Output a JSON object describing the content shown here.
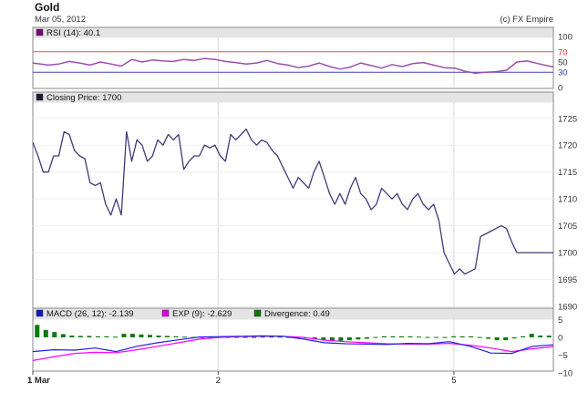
{
  "header": {
    "title": "Gold",
    "date": "Mar 05, 2012",
    "copyright": "(c) FX Empire"
  },
  "colors": {
    "price_line": "#3c3c7a",
    "rsi_line": "#9b4fb0",
    "rsi_upper": "#e05050",
    "rsi_lower": "#4040c0",
    "macd_line": "#2020e0",
    "exp_line": "#ff00ff",
    "divergence_bar": "#0a7a0a",
    "panel_header_bg": "#e4e4e4",
    "grid": "#d8d8d8"
  },
  "chart_data": [
    {
      "type": "line",
      "panel": "rsi",
      "label": "RSI (14): 40.1",
      "legend_swatch": "#800080",
      "ylim": [
        0,
        100
      ],
      "yticks": [
        100,
        70,
        50,
        30,
        0
      ],
      "reference_lines": [
        70,
        30
      ],
      "x": [
        0,
        0.03,
        0.05,
        0.07,
        0.09,
        0.11,
        0.13,
        0.15,
        0.17,
        0.19,
        0.21,
        0.23,
        0.25,
        0.27,
        0.29,
        0.31,
        0.33,
        0.35,
        0.37,
        0.39,
        0.41,
        0.43,
        0.45,
        0.47,
        0.49,
        0.51,
        0.53,
        0.55,
        0.57,
        0.59,
        0.61,
        0.63,
        0.65,
        0.67,
        0.69,
        0.71,
        0.73,
        0.75,
        0.77,
        0.79,
        0.81,
        0.83,
        0.85,
        0.87,
        0.89,
        0.91,
        0.93,
        0.95,
        0.97,
        1.0
      ],
      "values": [
        48,
        44,
        46,
        51,
        48,
        44,
        50,
        46,
        42,
        55,
        50,
        54,
        52,
        51,
        55,
        53,
        57,
        55,
        51,
        49,
        46,
        48,
        53,
        47,
        44,
        39,
        42,
        48,
        41,
        36,
        40,
        48,
        43,
        38,
        45,
        41,
        47,
        49,
        44,
        39,
        38,
        32,
        28,
        30,
        31,
        34,
        50,
        52,
        47,
        40.1
      ],
      "ylabel": ""
    },
    {
      "type": "line",
      "panel": "price",
      "label": "Closing Price: 1700",
      "legend_swatch": "#1a1a3a",
      "ylim": [
        1690,
        1727
      ],
      "yticks": [
        1725,
        1720,
        1715,
        1710,
        1705,
        1700,
        1695,
        1690
      ],
      "xticks": [
        {
          "label": "1 Mar",
          "pos": 0.0,
          "bold": true
        },
        {
          "label": "2",
          "pos": 0.356,
          "bold": false
        },
        {
          "label": "5",
          "pos": 0.809,
          "bold": false
        }
      ],
      "x": [
        0,
        0.01,
        0.02,
        0.03,
        0.04,
        0.05,
        0.06,
        0.07,
        0.08,
        0.09,
        0.1,
        0.11,
        0.12,
        0.13,
        0.14,
        0.15,
        0.16,
        0.17,
        0.18,
        0.19,
        0.2,
        0.21,
        0.22,
        0.23,
        0.24,
        0.25,
        0.26,
        0.27,
        0.28,
        0.29,
        0.3,
        0.31,
        0.32,
        0.33,
        0.34,
        0.35,
        0.36,
        0.37,
        0.38,
        0.39,
        0.4,
        0.41,
        0.42,
        0.43,
        0.44,
        0.45,
        0.46,
        0.47,
        0.48,
        0.49,
        0.5,
        0.51,
        0.52,
        0.53,
        0.54,
        0.55,
        0.56,
        0.57,
        0.58,
        0.59,
        0.6,
        0.61,
        0.62,
        0.63,
        0.64,
        0.65,
        0.66,
        0.67,
        0.68,
        0.69,
        0.7,
        0.71,
        0.72,
        0.73,
        0.74,
        0.75,
        0.76,
        0.77,
        0.78,
        0.79,
        0.8,
        0.81,
        0.82,
        0.83,
        0.84,
        0.85,
        0.86,
        0.87,
        0.88,
        0.89,
        0.9,
        0.91,
        0.92,
        0.93,
        0.94,
        0.95,
        0.96,
        0.97,
        0.98,
        0.99,
        1.0
      ],
      "values": [
        1720.5,
        1718,
        1715,
        1715,
        1718,
        1718,
        1722.5,
        1722,
        1719,
        1718,
        1717.5,
        1713,
        1712.5,
        1713,
        1709,
        1707,
        1710,
        1707,
        1722.5,
        1717,
        1721,
        1720,
        1717,
        1718,
        1721,
        1720,
        1722,
        1721,
        1722,
        1715.5,
        1717,
        1718,
        1718,
        1720,
        1719.5,
        1720,
        1718,
        1717,
        1722,
        1721,
        1722,
        1723,
        1721,
        1720,
        1721,
        1720.5,
        1719,
        1718,
        1716,
        1714,
        1712,
        1714,
        1713,
        1712,
        1715,
        1717,
        1714,
        1711,
        1709,
        1711,
        1709,
        1712,
        1714,
        1711,
        1710,
        1708,
        1709,
        1712,
        1711,
        1710,
        1711,
        1709,
        1708,
        1710,
        1711,
        1709,
        1708,
        1709,
        1706,
        1700,
        1698,
        1696,
        1697,
        1696,
        1696.5,
        1697,
        1703,
        1703.5,
        1704,
        1704.5,
        1705,
        1704.5,
        1702,
        1700,
        1700,
        1700,
        1700,
        1700,
        1700,
        1700,
        1700
      ],
      "xlabel": "",
      "ylabel": ""
    },
    {
      "type": "line",
      "panel": "macd",
      "ylim": [
        -10,
        5
      ],
      "yticks": [
        5,
        0,
        -5,
        -10
      ],
      "legend": [
        {
          "label": "MACD (26, 12): -2.139",
          "swatch": "#1515c0"
        },
        {
          "label": "EXP (9): -2.629",
          "swatch": "#e000e0"
        },
        {
          "label": "Divergence: 0.49",
          "swatch": "#0a7a0a"
        }
      ],
      "x": [
        0,
        0.04,
        0.08,
        0.12,
        0.16,
        0.2,
        0.24,
        0.28,
        0.32,
        0.36,
        0.4,
        0.44,
        0.48,
        0.52,
        0.56,
        0.6,
        0.64,
        0.68,
        0.72,
        0.76,
        0.8,
        0.84,
        0.88,
        0.92,
        0.96,
        1.0
      ],
      "series": [
        {
          "name": "MACD (26, 12)",
          "values": [
            -4,
            -3.5,
            -3.6,
            -3,
            -4,
            -2.5,
            -1.5,
            -0.7,
            0.1,
            0.2,
            0.3,
            0.4,
            0.3,
            -0.5,
            -1.5,
            -1.8,
            -1.9,
            -2,
            -1.7,
            -1.8,
            -1.2,
            -2.5,
            -4.4,
            -4.5,
            -2.5,
            -2.1
          ]
        },
        {
          "name": "EXP (9)",
          "values": [
            -6.5,
            -5.5,
            -4.5,
            -4.2,
            -4.3,
            -3.5,
            -2.5,
            -1.5,
            -0.5,
            0,
            0.2,
            0.3,
            0.3,
            0,
            -0.8,
            -1.2,
            -1.5,
            -1.8,
            -1.9,
            -1.9,
            -1.7,
            -2.2,
            -3,
            -4,
            -3.2,
            -2.6
          ]
        }
      ],
      "divergence": [
        3.5,
        2.1,
        1.5,
        0.9,
        0.5,
        0.4,
        0.4,
        0.3,
        0.3,
        0.2,
        1.0,
        1.0,
        0.8,
        0.7,
        0.5,
        0.4,
        0.3,
        0.2,
        0.1,
        0.1,
        0.1,
        0.1,
        0.1,
        0.1,
        0.1,
        0.1,
        0.2,
        0.2,
        0.2,
        0.1,
        0.1,
        -0.3,
        -0.6,
        -0.8,
        -0.9,
        -1.0,
        -0.8,
        -0.6,
        -0.4,
        0.1,
        0.3,
        0.3,
        0.3,
        0.3,
        0.2,
        0.1,
        0.1,
        0.1,
        0.3,
        0.3,
        0.3,
        0.1,
        -0.4,
        -0.8,
        -0.8,
        -0.3,
        0.3,
        1.0,
        0.5,
        0.49
      ]
    }
  ]
}
